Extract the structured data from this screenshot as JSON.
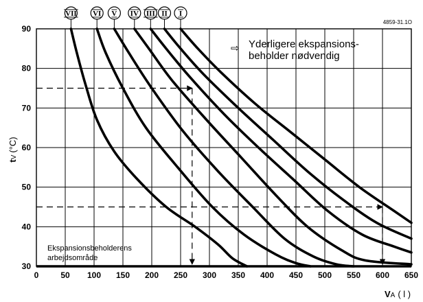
{
  "chart_data": {
    "type": "line",
    "figure_id": "4859-31.1O",
    "xlabel": {
      "main": "V",
      "sub": "A",
      "unit": "( l )"
    },
    "ylabel": {
      "main": "t",
      "sub": "V",
      "unit": "(°C)"
    },
    "xlim": [
      0,
      650
    ],
    "ylim": [
      30,
      90
    ],
    "xticks": [
      0,
      50,
      100,
      150,
      200,
      250,
      300,
      350,
      400,
      450,
      500,
      550,
      600,
      650
    ],
    "yticks": [
      30,
      40,
      50,
      60,
      70,
      80,
      90
    ],
    "grid": true,
    "annotation_top": {
      "arrow": "⇨",
      "line1": "Yderligere ekspansions-",
      "line2": "beholder nødvendig"
    },
    "annotation_bottom": {
      "line1": "Ekspansionsbeholderens",
      "line2": "arbejdsområde"
    },
    "series": [
      {
        "name": "I",
        "x": [
          250,
          280,
          320,
          380,
          440,
          500,
          560,
          620,
          650
        ],
        "y": [
          90,
          85,
          79,
          71,
          64,
          57,
          50,
          44,
          41
        ]
      },
      {
        "name": "II",
        "x": [
          222,
          250,
          290,
          350,
          410,
          470,
          530,
          590,
          650
        ],
        "y": [
          90,
          85,
          78.5,
          70,
          62,
          54,
          47,
          41,
          37
        ]
      },
      {
        "name": "III",
        "x": [
          198,
          225,
          265,
          325,
          385,
          445,
          505,
          565,
          620,
          650
        ],
        "y": [
          90,
          85,
          78,
          68.5,
          60,
          52,
          44,
          38,
          35,
          33.5
        ]
      },
      {
        "name": "IV",
        "x": [
          170,
          195,
          235,
          295,
          355,
          415,
          470,
          530,
          570,
          650
        ],
        "y": [
          90,
          85,
          77,
          67,
          57.5,
          48,
          40,
          34,
          31.5,
          30.5
        ]
      },
      {
        "name": "V",
        "x": [
          135,
          160,
          200,
          255,
          315,
          375,
          430,
          480,
          520,
          550
        ],
        "y": [
          90,
          84,
          75,
          64,
          54,
          45,
          37,
          32.5,
          30.5,
          30
        ]
      },
      {
        "name": "VI",
        "x": [
          105,
          120,
          150,
          190,
          245,
          305,
          360,
          415,
          450,
          475
        ],
        "y": [
          90,
          84,
          75,
          65,
          55,
          45,
          38,
          33,
          30.8,
          30
        ]
      },
      {
        "name": "VII",
        "x": [
          60,
          70,
          85,
          105,
          135,
          175,
          225,
          275,
          315,
          340,
          365
        ],
        "y": [
          90,
          84,
          76,
          67,
          59,
          52,
          45,
          40,
          35.5,
          32,
          30
        ]
      }
    ],
    "reference_lines": [
      {
        "from": [
          0,
          75
        ],
        "to": [
          270,
          75
        ]
      },
      {
        "from": [
          270,
          75
        ],
        "to": [
          270,
          30
        ]
      },
      {
        "from": [
          0,
          45
        ],
        "to": [
          600,
          45
        ]
      },
      {
        "from": [
          600,
          45
        ],
        "to": [
          600,
          30
        ]
      }
    ]
  }
}
